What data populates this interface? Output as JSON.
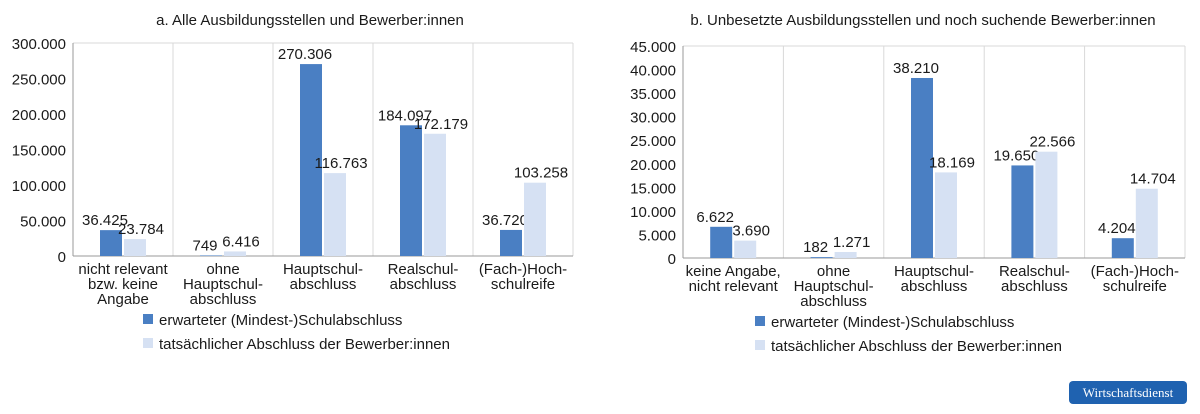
{
  "brand": "Wirtschaftsdienst",
  "colors": {
    "series1": "#4a7fc3",
    "series2": "#d6e1f3",
    "grid": "#d9d9d9",
    "axis": "#999999"
  },
  "chart_data": [
    {
      "type": "bar",
      "title": "a. Alle Ausbildungsstellen und Bewerber:innen",
      "categories": [
        "nicht relevant\nbzw. keine\nAngabe",
        "ohne\nHauptschul-\nabschluss",
        "Hauptschul-\nabschluss",
        "Realschul-\nabschluss",
        "(Fach-)Hoch-\nschulreife"
      ],
      "series": [
        {
          "name": "erwarteter (Mindest-)Schulabschluss",
          "values": [
            36425,
            749,
            270306,
            184097,
            36720
          ],
          "labels": [
            "36.425",
            "749",
            "270.306",
            "184.097",
            "36.720"
          ]
        },
        {
          "name": "tatsächlicher Abschluss der Bewerber:innen",
          "values": [
            23784,
            6416,
            116763,
            172179,
            103258
          ],
          "labels": [
            "23.784",
            "6.416",
            "116.763",
            "172.179",
            "103.258"
          ]
        }
      ],
      "ylim": [
        0,
        300000
      ],
      "yticks": [
        0,
        50000,
        100000,
        150000,
        200000,
        250000,
        300000
      ],
      "ytick_labels": [
        "0",
        "50.000",
        "100.000",
        "150.000",
        "200.000",
        "250.000",
        "300.000"
      ],
      "grid": "vertical category separators",
      "legend": "bottom"
    },
    {
      "type": "bar",
      "title": "b. Unbesetzte Ausbildungsstellen und noch suchende Bewerber:innen",
      "categories": [
        "keine Angabe,\nnicht relevant",
        "ohne\nHauptschul-\nabschluss",
        "Hauptschul-\nabschluss",
        "Realschul-\nabschluss",
        "(Fach-)Hoch-\nschulreife"
      ],
      "series": [
        {
          "name": "erwarteter (Mindest-)Schulabschluss",
          "values": [
            6622,
            182,
            38210,
            19650,
            4204
          ],
          "labels": [
            "6.622",
            "182",
            "38.210",
            "19.650",
            "4.204"
          ]
        },
        {
          "name": "tatsächlicher Abschluss der Bewerber:innen",
          "values": [
            3690,
            1271,
            18169,
            22566,
            14704
          ],
          "labels": [
            "3.690",
            "1.271",
            "18.169",
            "22.566",
            "14.704"
          ]
        }
      ],
      "ylim": [
        0,
        45000
      ],
      "yticks": [
        0,
        5000,
        10000,
        15000,
        20000,
        25000,
        30000,
        35000,
        40000,
        45000
      ],
      "ytick_labels": [
        "0",
        "5.000",
        "10.000",
        "15.000",
        "20.000",
        "25.000",
        "30.000",
        "35.000",
        "40.000",
        "45.000"
      ],
      "grid": "vertical category separators",
      "legend": "bottom"
    }
  ]
}
